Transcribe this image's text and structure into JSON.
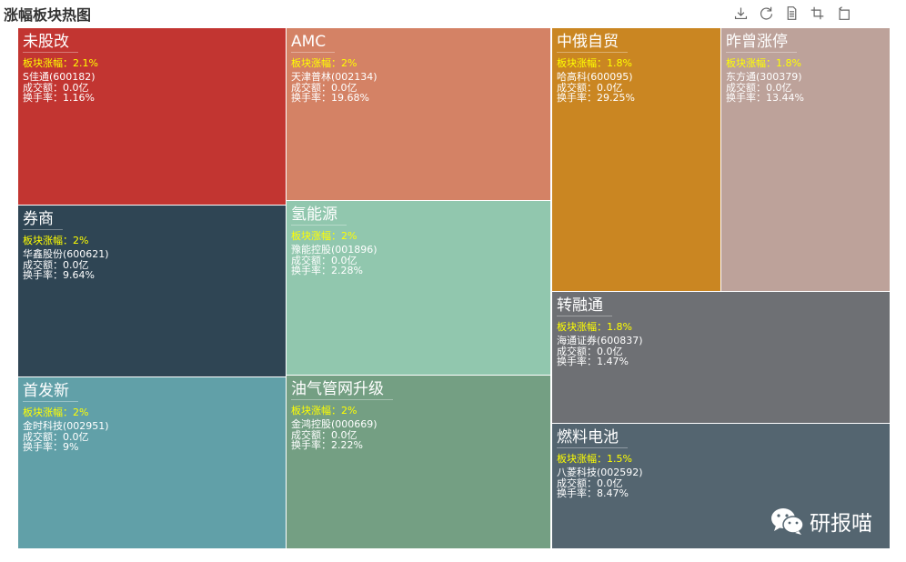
{
  "title": "涨幅板块热图",
  "toolbar": [
    {
      "name": "download-icon"
    },
    {
      "name": "refresh-icon"
    },
    {
      "name": "data-view-icon"
    },
    {
      "name": "zoom-icon"
    },
    {
      "name": "restore-icon"
    }
  ],
  "labels": {
    "rise": "板块涨幅：",
    "amount": "成交额：",
    "turnover": "换手率："
  },
  "watermark": "研报喵",
  "chart_data": {
    "type": "treemap",
    "title": "涨幅板块热图",
    "items": [
      {
        "name": "未股改",
        "rise": "2.1%",
        "stock": "S佳通(600182)",
        "amount": "0.0亿",
        "turnover": "1.16%",
        "color": "#c23531"
      },
      {
        "name": "券商",
        "rise": "2%",
        "stock": "华鑫股份(600621)",
        "amount": "0.0亿",
        "turnover": "9.64%",
        "color": "#2f4554"
      },
      {
        "name": "首发新",
        "rise": "2%",
        "stock": "金时科技(002951)",
        "amount": "0.0亿",
        "turnover": "9%",
        "color": "#61a0a8"
      },
      {
        "name": "AMC",
        "rise": "2%",
        "stock": "天津普林(002134)",
        "amount": "0.0亿",
        "turnover": "19.68%",
        "color": "#d48265"
      },
      {
        "name": "氢能源",
        "rise": "2%",
        "stock": "豫能控股(001896)",
        "amount": "0.0亿",
        "turnover": "2.28%",
        "color": "#91c7ae"
      },
      {
        "name": "油气管网升级",
        "rise": "2%",
        "stock": "金鸿控股(000669)",
        "amount": "0.0亿",
        "turnover": "2.22%",
        "color": "#749f83"
      },
      {
        "name": "中俄自贸",
        "rise": "1.8%",
        "stock": "哈高科(600095)",
        "amount": "0.0亿",
        "turnover": "29.25%",
        "color": "#ca8622"
      },
      {
        "name": "昨曾涨停",
        "rise": "1.8%",
        "stock": "东方通(300379)",
        "amount": "0.0亿",
        "turnover": "13.44%",
        "color": "#bda29a"
      },
      {
        "name": "转融通",
        "rise": "1.8%",
        "stock": "海通证券(600837)",
        "amount": "0.0亿",
        "turnover": "1.47%",
        "color": "#6e7074"
      },
      {
        "name": "燃料电池",
        "rise": "1.5%",
        "stock": "八菱科技(002592)",
        "amount": "0.0亿",
        "turnover": "8.47%",
        "color": "#546570"
      }
    ]
  }
}
